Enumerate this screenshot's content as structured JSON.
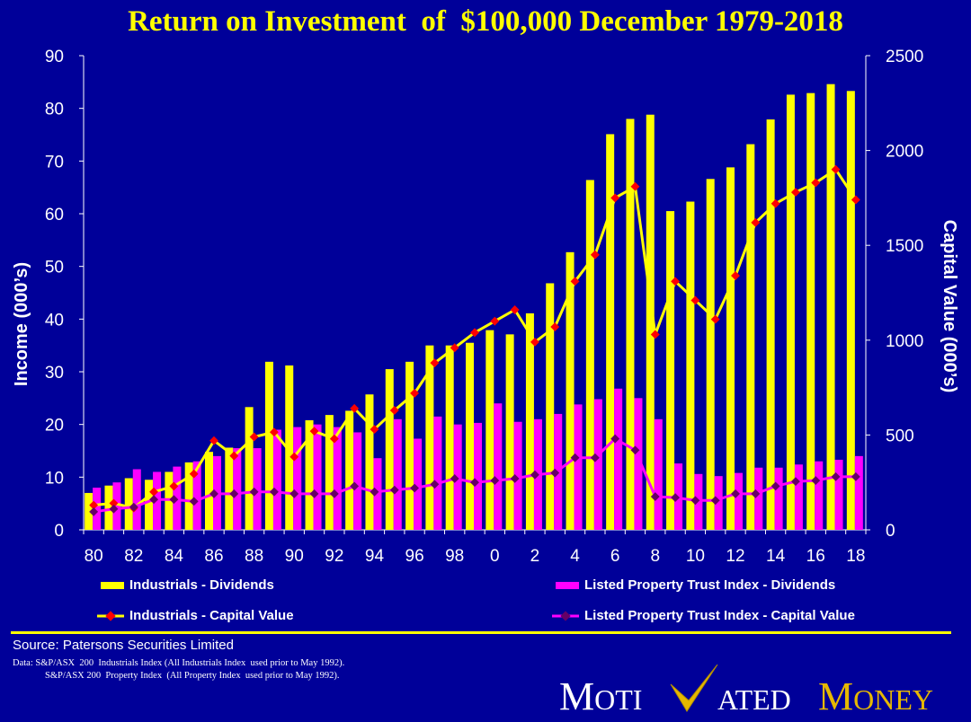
{
  "chart_data": {
    "type": "bar",
    "title": "Return on Investment  of  $100,000 December 1979-2018",
    "ylabel_left": "Income (000’s)",
    "ylabel_right": "Capital Value (000’s)",
    "ylim_left": [
      0,
      90
    ],
    "ylim_right": [
      0,
      2500
    ],
    "yticks_left": [
      "0",
      "10",
      "20",
      "30",
      "40",
      "50",
      "60",
      "70",
      "80",
      "90"
    ],
    "yticks_right": [
      "0",
      "500",
      "1000",
      "1500",
      "2000",
      "2500"
    ],
    "xtick_labels": [
      "80",
      "82",
      "84",
      "86",
      "88",
      "90",
      "92",
      "94",
      "96",
      "98",
      "0",
      "2",
      "4",
      "6",
      "8",
      "10",
      "12",
      "14",
      "16",
      "18"
    ],
    "categories": [
      "1980",
      "1981",
      "1982",
      "1983",
      "1984",
      "1985",
      "1986",
      "1987",
      "1988",
      "1989",
      "1990",
      "1991",
      "1992",
      "1993",
      "1994",
      "1995",
      "1996",
      "1997",
      "1998",
      "1999",
      "2000",
      "2001",
      "2002",
      "2003",
      "2004",
      "2005",
      "2006",
      "2007",
      "2008",
      "2009",
      "2010",
      "2011",
      "2012",
      "2013",
      "2014",
      "2015",
      "2016",
      "2017",
      "2018"
    ],
    "series": [
      {
        "name": "Industrials - Dividends",
        "kind": "bar",
        "axis": "left",
        "color": "#ffff00",
        "values": [
          7.0,
          8.4,
          9.8,
          9.5,
          11.0,
          12.8,
          14.8,
          15.6,
          23.3,
          31.9,
          31.2,
          20.8,
          21.8,
          22.6,
          25.7,
          30.5,
          31.9,
          35.0,
          35.0,
          35.5,
          37.9,
          37.1,
          41.1,
          46.8,
          52.7,
          66.4,
          75.1,
          78.0,
          78.8,
          60.5,
          62.3,
          66.6,
          68.8,
          73.2,
          77.9,
          82.6,
          82.9,
          84.6,
          83.3
        ]
      },
      {
        "name": "Listed Property Trust Index - Dividends",
        "kind": "bar",
        "axis": "left",
        "color": "#ff00ff",
        "values": [
          8.0,
          9.0,
          11.5,
          11.0,
          12.0,
          13.0,
          14.0,
          15.5,
          15.5,
          19.0,
          19.5,
          20.0,
          19.5,
          18.5,
          13.6,
          21.0,
          17.3,
          21.5,
          20.0,
          20.3,
          24.0,
          20.5,
          21.0,
          22.0,
          23.8,
          24.8,
          26.8,
          25.0,
          21.0,
          12.6,
          10.6,
          10.2,
          10.8,
          11.8,
          11.8,
          12.4,
          13.0,
          13.3,
          14.0
        ]
      },
      {
        "name": "Industrials - Capital Value",
        "kind": "line",
        "axis": "right",
        "color": "#ffff00",
        "marker_color": "#ff0000",
        "values": [
          130,
          140,
          115,
          200,
          230,
          295,
          470,
          390,
          490,
          515,
          385,
          520,
          480,
          640,
          530,
          630,
          720,
          880,
          960,
          1040,
          1100,
          1160,
          990,
          1070,
          1310,
          1450,
          1750,
          1810,
          1030,
          1310,
          1210,
          1110,
          1340,
          1620,
          1720,
          1780,
          1830,
          1900,
          1740
        ]
      },
      {
        "name": "Listed Property Trust Index - Capital Value",
        "kind": "line",
        "axis": "right",
        "color": "#ff00ff",
        "marker_color": "#660066",
        "values": [
          95,
          110,
          120,
          160,
          160,
          150,
          190,
          190,
          200,
          200,
          190,
          190,
          190,
          230,
          200,
          210,
          220,
          240,
          270,
          250,
          260,
          270,
          290,
          300,
          380,
          380,
          480,
          420,
          175,
          170,
          155,
          155,
          190,
          190,
          230,
          255,
          260,
          280,
          280
        ]
      }
    ]
  },
  "legend": {
    "industrials_dividends": "Industrials - Dividends",
    "lpt_dividends": "Listed Property Trust Index - Dividends",
    "industrials_capital": "Industrials - Capital Value",
    "lpt_capital": "Listed Property Trust Index - Capital Value"
  },
  "footer": {
    "source": "Source: Patersons Securities Limited",
    "note1": "Data: S&P/ASX  200  Industrials Index (All Industrials Index  used prior to May 1992).",
    "note2": "S&P/ASX 200  Property Index  (All Property Index  used prior to May 1992)."
  },
  "logo": {
    "part1_big": "M",
    "part1_small": "OTI",
    "part2_small": "ATED",
    "part3_big": "M",
    "part3_small": "ONEY"
  },
  "colors": {
    "background": "#000099",
    "accent": "#ffff00",
    "magenta": "#ff00ff",
    "logo_gold": "#e6b800"
  }
}
